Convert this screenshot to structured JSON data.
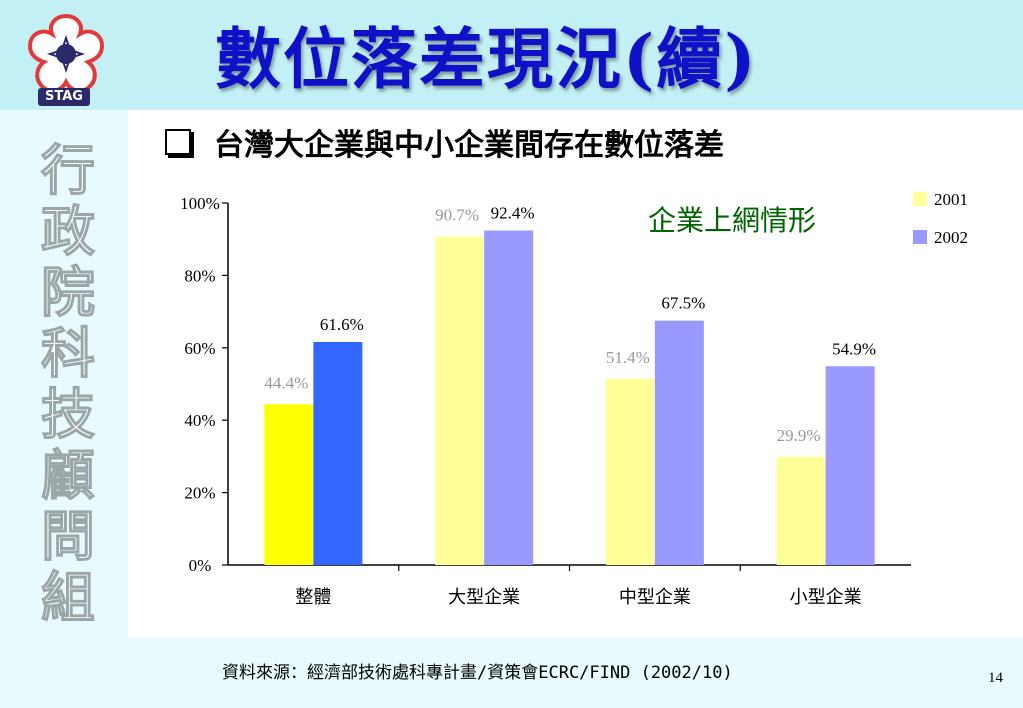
{
  "header": {
    "title": "數位落差現況(續)",
    "logo_text": "STAG"
  },
  "sidebar": {
    "vertical_text": "行政院科技顧問組"
  },
  "subtitle": "台灣大企業與中小企業間存在數位落差",
  "footer": {
    "source": "資料來源：經濟部技術處科專計畫/資策會ECRC/FIND (2002/10)",
    "page_number": "14"
  },
  "colors": {
    "header_bg": "#c2f0f4",
    "title": "#1010c8",
    "chart_title": "#006400"
  },
  "chart_data": {
    "type": "bar",
    "title": "企業上網情形",
    "categories": [
      "整體",
      "大型企業",
      "中型企業",
      "小型企業"
    ],
    "series": [
      {
        "name": "2001",
        "values": [
          44.4,
          90.7,
          51.4,
          29.9
        ],
        "labels": [
          "44.4%",
          "90.7%",
          "51.4%",
          "29.9%"
        ],
        "colors": [
          "#ffff00",
          "#ffff99",
          "#ffff99",
          "#ffff99"
        ]
      },
      {
        "name": "2002",
        "values": [
          61.6,
          92.4,
          67.5,
          54.9
        ],
        "labels": [
          "61.6%",
          "92.4%",
          "67.5%",
          "54.9%"
        ],
        "colors": [
          "#3366ff",
          "#9999ff",
          "#9999ff",
          "#9999ff"
        ]
      }
    ],
    "y_ticks": [
      "0%",
      "20%",
      "40%",
      "60%",
      "80%",
      "100%"
    ],
    "ylim": [
      0,
      100
    ],
    "legend_position": "top-right",
    "grid": false
  }
}
